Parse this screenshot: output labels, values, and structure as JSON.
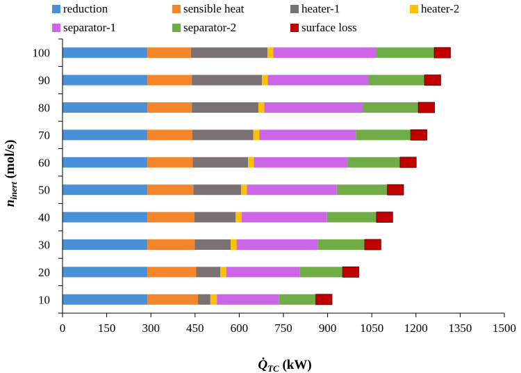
{
  "chart_data": {
    "type": "bar",
    "orientation": "horizontal",
    "stacked": true,
    "title": "",
    "xlabel_main": "Q̇",
    "xlabel_sub": "TC",
    "xlabel_unit": " (kW)",
    "ylabel_main": "n",
    "ylabel_sub": "inert",
    "ylabel_unit": " (mol/s)",
    "xlim": [
      0,
      1500
    ],
    "xticks": [
      "0",
      "150",
      "300",
      "450",
      "600",
      "750",
      "900",
      "1050",
      "1200",
      "1350",
      "1500"
    ],
    "categories": [
      "10",
      "20",
      "30",
      "40",
      "50",
      "60",
      "70",
      "80",
      "90",
      "100"
    ],
    "grid": false,
    "legend_position": "top",
    "series": [
      {
        "name": "reduction",
        "color": "#4a90d9",
        "values": [
          288,
          288,
          288,
          288,
          288,
          288,
          288,
          288,
          288,
          288
        ]
      },
      {
        "name": "sensible heat",
        "color": "#f5852a",
        "values": [
          172,
          166,
          161,
          160,
          156,
          154,
          153,
          151,
          151,
          148
        ]
      },
      {
        "name": "heater-1",
        "color": "#7a7272",
        "values": [
          42,
          82,
          122,
          140,
          162,
          188,
          207,
          226,
          238,
          260
        ]
      },
      {
        "name": "heater-2",
        "color": "#ffc000",
        "values": [
          22,
          20,
          20,
          20,
          20,
          20,
          20,
          20,
          20,
          20
        ]
      },
      {
        "name": "separator-1",
        "color": "#cc66e6",
        "values": [
          210,
          250,
          275,
          290,
          305,
          318,
          328,
          335,
          342,
          350
        ]
      },
      {
        "name": "separator-2",
        "color": "#70ad47",
        "values": [
          126,
          145,
          160,
          168,
          172,
          178,
          186,
          188,
          190,
          196
        ]
      },
      {
        "name": "surface loss",
        "color": "#c00000",
        "values": [
          55,
          55,
          55,
          55,
          55,
          55,
          55,
          55,
          55,
          55
        ]
      }
    ]
  }
}
